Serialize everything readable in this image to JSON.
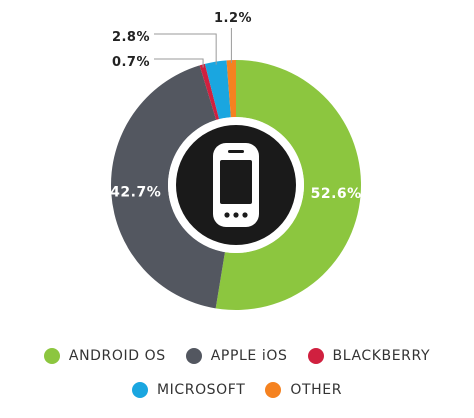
{
  "chart_data": {
    "type": "pie",
    "variant": "donut",
    "title": "",
    "slices": [
      {
        "label": "ANDROID OS",
        "value": 52.6,
        "value_label": "52.6%",
        "color": "#8cc63f"
      },
      {
        "label": "APPLE iOS",
        "value": 42.7,
        "value_label": "42.7%",
        "color": "#535760"
      },
      {
        "label": "BLACKBERRY",
        "value": 0.7,
        "value_label": "0.7%",
        "color": "#d0203f"
      },
      {
        "label": "MICROSOFT",
        "value": 2.8,
        "value_label": "2.8%",
        "color": "#1aa6e0"
      },
      {
        "label": "OTHER",
        "value": 1.2,
        "value_label": "1.2%",
        "color": "#f58220"
      }
    ],
    "legend_position": "bottom",
    "center_icon": "smartphone-icon"
  }
}
